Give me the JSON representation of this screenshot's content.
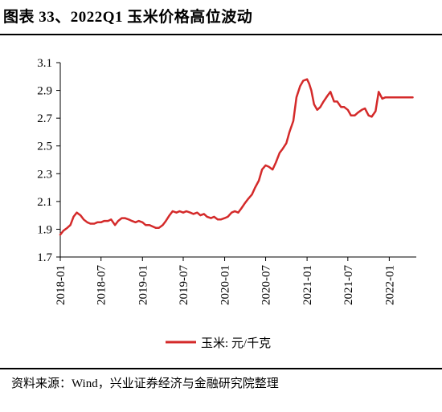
{
  "figure": {
    "title": "图表 33、2022Q1 玉米价格高位波动",
    "source": "资料来源：Wind，兴业证券经济与金融研究院整理"
  },
  "chart_data": {
    "type": "line",
    "title": "",
    "xlabel": "",
    "ylabel": "",
    "ylim": [
      1.7,
      3.1
    ],
    "yticks": [
      "3.1",
      "2.9",
      "2.7",
      "2.5",
      "2.3",
      "2.1",
      "1.9",
      "1.7"
    ],
    "xlim": [
      "2018-01",
      "2022-05"
    ],
    "xticks": [
      "2018-01",
      "2018-07",
      "2019-01",
      "2019-07",
      "2020-01",
      "2020-07",
      "2021-01",
      "2021-07",
      "2022-01"
    ],
    "grid": false,
    "legend_position": "bottom",
    "series": [
      {
        "name": "玉米: 元/千克",
        "color": "#d42a2a",
        "x": [
          "2018-01-01",
          "2018-01-15",
          "2018-02-01",
          "2018-02-15",
          "2018-03-01",
          "2018-03-15",
          "2018-04-01",
          "2018-04-15",
          "2018-05-01",
          "2018-05-15",
          "2018-06-01",
          "2018-06-15",
          "2018-07-01",
          "2018-07-15",
          "2018-08-01",
          "2018-08-15",
          "2018-09-01",
          "2018-09-15",
          "2018-10-01",
          "2018-10-15",
          "2018-11-01",
          "2018-11-15",
          "2018-12-01",
          "2018-12-15",
          "2019-01-01",
          "2019-01-15",
          "2019-02-01",
          "2019-02-15",
          "2019-03-01",
          "2019-03-15",
          "2019-04-01",
          "2019-04-15",
          "2019-05-01",
          "2019-05-15",
          "2019-06-01",
          "2019-06-15",
          "2019-07-01",
          "2019-07-15",
          "2019-08-01",
          "2019-08-15",
          "2019-09-01",
          "2019-09-15",
          "2019-10-01",
          "2019-10-15",
          "2019-11-01",
          "2019-11-15",
          "2019-12-01",
          "2019-12-15",
          "2020-01-01",
          "2020-01-15",
          "2020-02-01",
          "2020-02-15",
          "2020-03-01",
          "2020-03-15",
          "2020-04-01",
          "2020-04-15",
          "2020-05-01",
          "2020-05-15",
          "2020-06-01",
          "2020-06-15",
          "2020-07-01",
          "2020-07-15",
          "2020-08-01",
          "2020-08-15",
          "2020-09-01",
          "2020-09-15",
          "2020-10-01",
          "2020-10-15",
          "2020-11-01",
          "2020-11-15",
          "2020-12-01",
          "2020-12-15",
          "2021-01-01",
          "2021-01-10",
          "2021-01-20",
          "2021-02-01",
          "2021-02-15",
          "2021-03-01",
          "2021-03-15",
          "2021-04-01",
          "2021-04-15",
          "2021-05-01",
          "2021-05-15",
          "2021-06-01",
          "2021-06-15",
          "2021-07-01",
          "2021-07-15",
          "2021-08-01",
          "2021-08-15",
          "2021-09-01",
          "2021-09-15",
          "2021-10-01",
          "2021-10-15",
          "2021-11-01",
          "2021-11-15",
          "2021-12-01",
          "2021-12-15",
          "2022-01-01",
          "2022-01-15",
          "2022-02-01",
          "2022-02-15",
          "2022-03-01",
          "2022-03-15",
          "2022-04-01",
          "2022-04-15"
        ],
        "values": [
          1.86,
          1.89,
          1.91,
          1.93,
          1.99,
          2.02,
          2.0,
          1.97,
          1.95,
          1.94,
          1.94,
          1.95,
          1.95,
          1.96,
          1.96,
          1.97,
          1.93,
          1.96,
          1.98,
          1.98,
          1.97,
          1.96,
          1.95,
          1.96,
          1.95,
          1.93,
          1.93,
          1.92,
          1.91,
          1.91,
          1.93,
          1.96,
          2.0,
          2.03,
          2.02,
          2.03,
          2.02,
          2.03,
          2.02,
          2.01,
          2.02,
          2.0,
          2.01,
          1.99,
          1.98,
          1.99,
          1.97,
          1.97,
          1.98,
          1.99,
          2.02,
          2.03,
          2.02,
          2.05,
          2.09,
          2.12,
          2.15,
          2.2,
          2.25,
          2.33,
          2.36,
          2.35,
          2.33,
          2.38,
          2.45,
          2.48,
          2.52,
          2.6,
          2.68,
          2.85,
          2.93,
          2.97,
          2.98,
          2.95,
          2.9,
          2.8,
          2.76,
          2.78,
          2.82,
          2.86,
          2.89,
          2.82,
          2.82,
          2.78,
          2.78,
          2.76,
          2.72,
          2.72,
          2.74,
          2.76,
          2.77,
          2.72,
          2.71,
          2.75,
          2.89,
          2.84,
          2.85,
          2.85,
          2.85,
          2.85,
          2.85,
          2.85,
          2.85,
          2.85,
          2.85
        ]
      }
    ]
  }
}
